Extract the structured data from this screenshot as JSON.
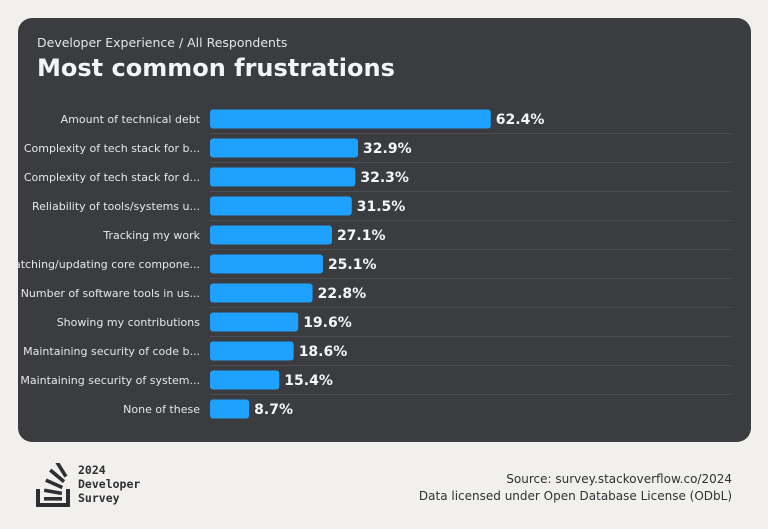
{
  "header": {
    "breadcrumb": "Developer Experience / All Respondents",
    "title": "Most common frustrations"
  },
  "colors": {
    "bar": "#1ea1ff",
    "card_background": "#3a3c40",
    "page_background": "#f1f0ec"
  },
  "chart_data": {
    "type": "bar",
    "orientation": "horizontal",
    "title": "Most common frustrations",
    "categories": [
      "Amount of technical debt",
      "Complexity of tech stack for b...",
      "Complexity of tech stack for d...",
      "Reliability of tools/systems u...",
      "Tracking my work",
      "Patching/updating core compone...",
      "Number of software tools in us...",
      "Showing my contributions",
      "Maintaining security of code b...",
      "Maintaining security of system...",
      "None of these"
    ],
    "values": [
      62.4,
      32.9,
      32.3,
      31.5,
      27.1,
      25.1,
      22.8,
      19.6,
      18.6,
      15.4,
      8.7
    ],
    "value_labels": [
      "62.4%",
      "32.9%",
      "32.3%",
      "31.5%",
      "27.1%",
      "25.1%",
      "22.8%",
      "19.6%",
      "18.6%",
      "15.4%",
      "8.7%"
    ],
    "xlim": [
      0,
      100
    ],
    "grid": false
  },
  "footer": {
    "logo_icon": "stack-overflow-logo-icon",
    "logo_lines": [
      "2024",
      "Developer",
      "Survey"
    ],
    "source": "Source: survey.stackoverflow.co/2024",
    "license": "Data licensed under Open Database License (ODbL)"
  }
}
